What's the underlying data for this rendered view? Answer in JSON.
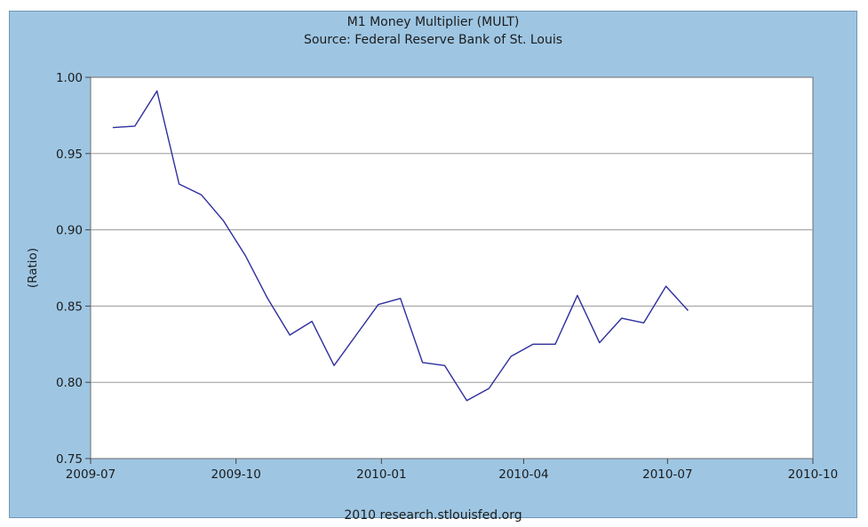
{
  "chart_data": {
    "type": "line",
    "title": "M1 Money Multiplier (MULT)",
    "subtitle": "Source: Federal Reserve Bank of St. Louis",
    "ylabel": "(Ratio)",
    "xlabel": "",
    "ylim": [
      0.75,
      1.0
    ],
    "xlim": [
      "2009-07-01",
      "2010-10-01"
    ],
    "y_ticks": [
      "0.75",
      "0.80",
      "0.85",
      "0.90",
      "0.95",
      "1.00"
    ],
    "x_ticks": [
      "2009-07",
      "2009-10",
      "2010-01",
      "2010-04",
      "2010-07",
      "2010-10"
    ],
    "grid": true,
    "series": [
      {
        "values": [
          {
            "x": "2009-07-15",
            "y": 0.967
          },
          {
            "x": "2009-07-29",
            "y": 0.968
          },
          {
            "x": "2009-08-12",
            "y": 0.991
          },
          {
            "x": "2009-08-26",
            "y": 0.93
          },
          {
            "x": "2009-09-09",
            "y": 0.923
          },
          {
            "x": "2009-09-23",
            "y": 0.906
          },
          {
            "x": "2009-10-07",
            "y": 0.883
          },
          {
            "x": "2009-10-21",
            "y": 0.855
          },
          {
            "x": "2009-11-04",
            "y": 0.831
          },
          {
            "x": "2009-11-18",
            "y": 0.84
          },
          {
            "x": "2009-12-02",
            "y": 0.811
          },
          {
            "x": "2009-12-16",
            "y": 0.831
          },
          {
            "x": "2009-12-30",
            "y": 0.851
          },
          {
            "x": "2010-01-13",
            "y": 0.855
          },
          {
            "x": "2010-01-27",
            "y": 0.813
          },
          {
            "x": "2010-02-10",
            "y": 0.811
          },
          {
            "x": "2010-02-24",
            "y": 0.788
          },
          {
            "x": "2010-03-10",
            "y": 0.796
          },
          {
            "x": "2010-03-24",
            "y": 0.817
          },
          {
            "x": "2010-04-07",
            "y": 0.825
          },
          {
            "x": "2010-04-21",
            "y": 0.825
          },
          {
            "x": "2010-05-05",
            "y": 0.857
          },
          {
            "x": "2010-05-19",
            "y": 0.826
          },
          {
            "x": "2010-06-02",
            "y": 0.842
          },
          {
            "x": "2010-06-16",
            "y": 0.839
          },
          {
            "x": "2010-06-30",
            "y": 0.863
          },
          {
            "x": "2010-07-14",
            "y": 0.847
          }
        ],
        "color": "#2e2e9e"
      }
    ],
    "footer": "2010 research.stlouisfed.org",
    "colors": {
      "background": "#9ec6e3",
      "plot_area": "#ffffff",
      "gridline": "#9a9a9a",
      "line": "#2e2e9e"
    }
  }
}
